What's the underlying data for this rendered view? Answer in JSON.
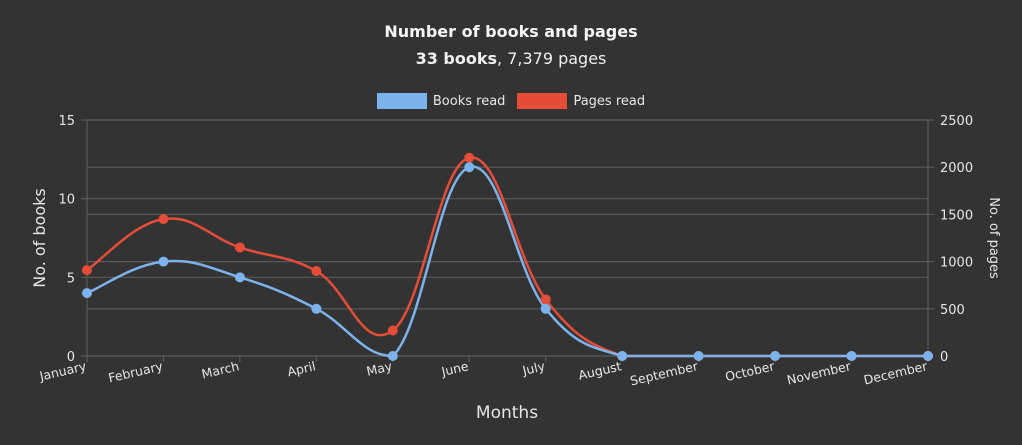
{
  "header": {
    "title": "Number of books and pages",
    "subtitle_bold": "33 books",
    "subtitle_rest": ", 7,379 pages"
  },
  "legend": [
    {
      "label": "Books read",
      "color": "#7db3ec"
    },
    {
      "label": "Pages read",
      "color": "#e64d38"
    }
  ],
  "chart_data": {
    "type": "line",
    "title": "Number of books and pages",
    "subtitle": "33 books, 7,379 pages",
    "xlabel": "Months",
    "categories": [
      "January",
      "February",
      "March",
      "April",
      "May",
      "June",
      "July",
      "August",
      "September",
      "October",
      "November",
      "December"
    ],
    "series": [
      {
        "name": "Books read",
        "axis": "left",
        "color": "#7db3ec",
        "values": [
          4,
          6,
          5,
          3,
          0,
          12,
          3,
          0,
          0,
          0,
          0,
          0
        ]
      },
      {
        "name": "Pages read",
        "axis": "right",
        "color": "#e64d38",
        "values": [
          910,
          1450,
          1150,
          900,
          270,
          2100,
          599,
          0,
          0,
          0,
          0,
          0
        ]
      }
    ],
    "y_left": {
      "label": "No. of books",
      "range": [
        0,
        15
      ],
      "ticks": [
        0,
        5,
        10,
        15
      ]
    },
    "y_right": {
      "label": "No. of pages",
      "range": [
        0,
        2500
      ],
      "ticks": [
        0,
        500,
        1000,
        1500,
        2000,
        2500
      ]
    },
    "grid": true,
    "legend_position": "top",
    "smooth": true
  }
}
